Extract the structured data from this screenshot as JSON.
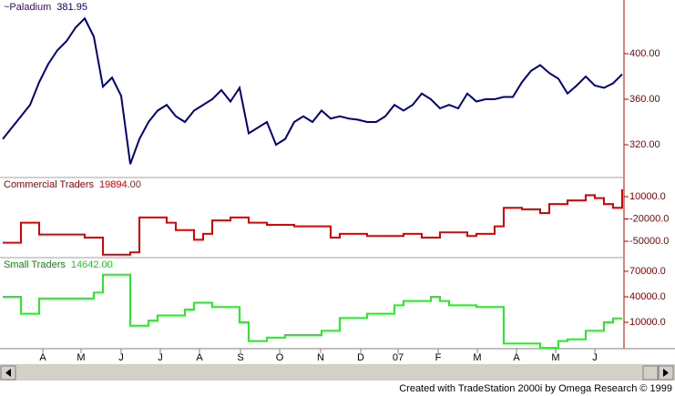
{
  "chart_data": [
    {
      "type": "line",
      "name": "~Paladium",
      "last": "381.95",
      "color": "#000080",
      "label_color": "#400080",
      "x": [
        0,
        1,
        2,
        3,
        4,
        5,
        6,
        7,
        8,
        9,
        10,
        11,
        12,
        13,
        14,
        15,
        16,
        17,
        18,
        19,
        20,
        21,
        22,
        23,
        24,
        25,
        26,
        27,
        28,
        29,
        30,
        31,
        32,
        33,
        34,
        35,
        36,
        37,
        38,
        39,
        40,
        41,
        42,
        43,
        44,
        45,
        46,
        47,
        48,
        49,
        50,
        51,
        52,
        53,
        54,
        55,
        56,
        57,
        58,
        59,
        60,
        61,
        62,
        63,
        64,
        65,
        66,
        67,
        68
      ],
      "values": [
        325,
        335,
        345,
        355,
        375,
        391,
        403,
        411,
        423,
        431,
        415,
        371,
        379,
        363,
        303,
        325,
        340,
        350,
        355,
        345,
        340,
        350,
        355,
        360,
        368,
        358,
        370,
        330,
        335,
        340,
        320,
        325,
        340,
        345,
        340,
        350,
        343,
        345,
        343,
        342,
        340,
        340,
        345,
        355,
        350,
        355,
        365,
        360,
        352,
        355,
        352,
        365,
        358,
        360,
        360,
        362,
        362,
        375,
        385,
        390,
        383,
        378,
        365,
        372,
        380,
        372,
        370,
        374,
        381.95
      ],
      "xlim": [
        -0.3,
        68.2
      ],
      "ylim": [
        291.2,
        447.2
      ],
      "yticks": [
        {
          "value": 400,
          "label": "400.00"
        },
        {
          "value": 360,
          "label": "360.00"
        },
        {
          "value": 320,
          "label": "320.00"
        }
      ]
    },
    {
      "type": "step",
      "name": "Commercial Traders",
      "last": "19894.00",
      "color": "#e00000",
      "label_color": "#900000",
      "x": [
        0,
        1,
        2,
        3,
        4,
        5,
        6,
        7,
        8,
        9,
        10,
        11,
        12,
        13,
        14,
        15,
        16,
        17,
        18,
        19,
        20,
        21,
        22,
        23,
        24,
        25,
        26,
        27,
        28,
        29,
        30,
        31,
        32,
        33,
        34,
        35,
        36,
        37,
        38,
        39,
        40,
        41,
        42,
        43,
        44,
        45,
        46,
        47,
        48,
        49,
        50,
        51,
        52,
        53,
        54,
        55,
        56,
        57,
        58,
        59,
        60,
        61,
        62,
        63,
        64,
        65,
        66,
        67,
        68
      ],
      "values": [
        -52000,
        -52000,
        -25000,
        -25000,
        -41000,
        -41000,
        -41000,
        -41000,
        -41000,
        -45000,
        -45000,
        -68000,
        -68000,
        -68000,
        -65000,
        -18000,
        -18000,
        -18000,
        -25000,
        -35000,
        -35000,
        -48000,
        -40000,
        -22000,
        -22000,
        -18000,
        -18000,
        -25000,
        -25000,
        -28000,
        -28000,
        -28000,
        -30000,
        -30000,
        -30000,
        -30000,
        -45000,
        -40000,
        -40000,
        -40000,
        -43000,
        -43000,
        -43000,
        -43000,
        -40000,
        -40000,
        -45000,
        -45000,
        -38000,
        -38000,
        -38000,
        -43000,
        -40000,
        -40000,
        -30000,
        -5000,
        -5000,
        -7000,
        -7000,
        -12000,
        0,
        0,
        5000,
        5000,
        12000,
        8000,
        0,
        -5000,
        19894
      ],
      "xlim": [
        -0.3,
        68.2
      ],
      "ylim": [
        -72000,
        35700
      ],
      "yticks": [
        {
          "value": 10000,
          "label": "10000.0"
        },
        {
          "value": -20000,
          "label": "-20000.0"
        },
        {
          "value": -50000,
          "label": "-50000.0"
        }
      ]
    },
    {
      "type": "step",
      "name": "Small Traders",
      "last": "14642.00",
      "color": "#22ee22",
      "label_color": "#009000",
      "x": [
        0,
        1,
        2,
        3,
        4,
        5,
        6,
        7,
        8,
        9,
        10,
        11,
        12,
        13,
        14,
        15,
        16,
        17,
        18,
        19,
        20,
        21,
        22,
        23,
        24,
        25,
        26,
        27,
        28,
        29,
        30,
        31,
        32,
        33,
        34,
        35,
        36,
        37,
        38,
        39,
        40,
        41,
        42,
        43,
        44,
        45,
        46,
        47,
        48,
        49,
        50,
        51,
        52,
        53,
        54,
        55,
        56,
        57,
        58,
        59,
        60,
        61,
        62,
        63,
        64,
        65,
        66,
        67,
        68
      ],
      "values": [
        40000,
        40000,
        20000,
        20000,
        38000,
        38000,
        38000,
        38000,
        38000,
        38000,
        45000,
        66000,
        66000,
        66000,
        6000,
        6000,
        12000,
        18000,
        18000,
        18000,
        25000,
        33000,
        33000,
        28000,
        28000,
        28000,
        10000,
        -12000,
        -12000,
        -8000,
        -8000,
        -5000,
        -5000,
        -5000,
        -5000,
        0,
        0,
        15000,
        15000,
        15000,
        20000,
        20000,
        20000,
        30000,
        35000,
        35000,
        35000,
        40000,
        35000,
        30000,
        30000,
        30000,
        28000,
        28000,
        28000,
        -15000,
        -15000,
        -15000,
        -15000,
        -20000,
        -20000,
        -12000,
        -10000,
        -10000,
        0,
        0,
        10000,
        14642,
        14642
      ],
      "xlim": [
        -0.3,
        68.2
      ],
      "ylim": [
        -21000,
        86000
      ],
      "yticks": [
        {
          "value": 70000,
          "label": "70000.0"
        },
        {
          "value": 40000,
          "label": "40000.0"
        },
        {
          "value": 10000,
          "label": "10000.0"
        }
      ],
      "xticks": [
        {
          "value": 4.4,
          "label": "A"
        },
        {
          "value": 8.6,
          "label": "M"
        },
        {
          "value": 13,
          "label": "J"
        },
        {
          "value": 17.3,
          "label": "J"
        },
        {
          "value": 21.6,
          "label": "A"
        },
        {
          "value": 26.1,
          "label": "S"
        },
        {
          "value": 30.4,
          "label": "O"
        },
        {
          "value": 34.9,
          "label": "N"
        },
        {
          "value": 39.3,
          "label": "D"
        },
        {
          "value": 43.4,
          "label": "07"
        },
        {
          "value": 47.8,
          "label": "F"
        },
        {
          "value": 52.1,
          "label": "M"
        },
        {
          "value": 56.4,
          "label": "A"
        },
        {
          "value": 60.7,
          "label": "M"
        },
        {
          "value": 65,
          "label": "J"
        }
      ]
    }
  ],
  "footer": "Created with TradeStation 2000i by Omega Research © 1999"
}
